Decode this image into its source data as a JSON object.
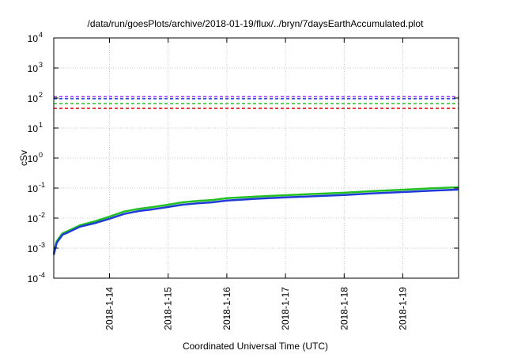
{
  "chart_data": {
    "type": "line",
    "title": "/data/run/goesPlots/archive/2018-01-19/flux/../bryn/7daysEarthAccumulated.plot",
    "xlabel": "Coordinated Universal Time (UTC)",
    "ylabel": "cSv",
    "yscale": "log",
    "ylim": [
      0.0001,
      10000
    ],
    "xlim": [
      13.05,
      19.95
    ],
    "grid": true,
    "y_ticks": [
      {
        "base": "10",
        "exp": "-4",
        "value": 0.0001
      },
      {
        "base": "10",
        "exp": "-3",
        "value": 0.001
      },
      {
        "base": "10",
        "exp": "-2",
        "value": 0.01
      },
      {
        "base": "10",
        "exp": "-1",
        "value": 0.1
      },
      {
        "base": "10",
        "exp": "0",
        "value": 1
      },
      {
        "base": "10",
        "exp": "1",
        "value": 10
      },
      {
        "base": "10",
        "exp": "2",
        "value": 100
      },
      {
        "base": "10",
        "exp": "3",
        "value": 1000
      },
      {
        "base": "10",
        "exp": "4",
        "value": 10000
      }
    ],
    "x_ticks": [
      {
        "label": "2018-1-14",
        "value": 14
      },
      {
        "label": "2018-1-15",
        "value": 15
      },
      {
        "label": "2018-1-16",
        "value": 16
      },
      {
        "label": "2018-1-17",
        "value": 17
      },
      {
        "label": "2018-1-18",
        "value": 18
      },
      {
        "label": "2018-1-19",
        "value": 19
      }
    ],
    "thresholds": [
      {
        "value": 110,
        "color": "#9b30ff"
      },
      {
        "value": 95,
        "color": "#1f3bd6"
      },
      {
        "value": 65,
        "color": "#22c022"
      },
      {
        "value": 45,
        "color": "#e01010"
      }
    ],
    "series": [
      {
        "color": "#22c022",
        "x": [
          13.05,
          13.1,
          13.2,
          13.3,
          13.5,
          13.75,
          14.0,
          14.25,
          14.5,
          14.75,
          15.0,
          15.25,
          15.5,
          15.75,
          16.0,
          16.5,
          17.0,
          17.5,
          18.0,
          18.5,
          19.0,
          19.5,
          19.95
        ],
        "y": [
          0.0007,
          0.0017,
          0.0031,
          0.0038,
          0.0058,
          0.0078,
          0.0112,
          0.0165,
          0.0205,
          0.0235,
          0.028,
          0.0335,
          0.0375,
          0.04,
          0.046,
          0.052,
          0.058,
          0.064,
          0.07,
          0.08,
          0.088,
          0.098,
          0.106
        ]
      },
      {
        "color": "#1f3bd6",
        "x": [
          13.05,
          13.1,
          13.2,
          13.3,
          13.5,
          13.75,
          14.0,
          14.25,
          14.5,
          14.75,
          15.0,
          15.25,
          15.5,
          15.75,
          16.0,
          16.5,
          17.0,
          17.5,
          18.0,
          18.5,
          19.0,
          19.5,
          19.95
        ],
        "y": [
          0.0006,
          0.0015,
          0.0028,
          0.0034,
          0.0052,
          0.0068,
          0.0095,
          0.0138,
          0.0172,
          0.0198,
          0.0235,
          0.028,
          0.031,
          0.0335,
          0.0385,
          0.044,
          0.049,
          0.054,
          0.059,
          0.067,
          0.074,
          0.082,
          0.089
        ]
      }
    ]
  }
}
